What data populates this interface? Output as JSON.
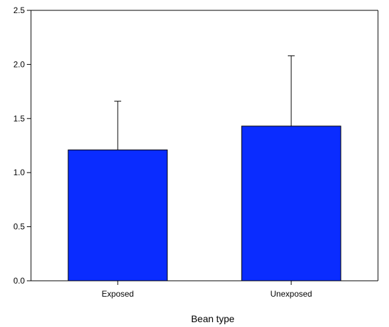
{
  "chart_data": {
    "type": "bar",
    "title": "",
    "xlabel": "Bean type",
    "ylabel": "",
    "categories": [
      "Exposed",
      "Unexposed"
    ],
    "values": [
      1.21,
      1.43
    ],
    "error_upper": [
      0.45,
      0.65
    ],
    "ylim": [
      0,
      2.5
    ],
    "yticks": [
      "0.0",
      "0.5",
      "1.0",
      "1.5",
      "2.0",
      "2.5"
    ],
    "grid": false,
    "legend": "none",
    "bar_color": "#0a2cff",
    "bar_edge_color": "#000000"
  }
}
